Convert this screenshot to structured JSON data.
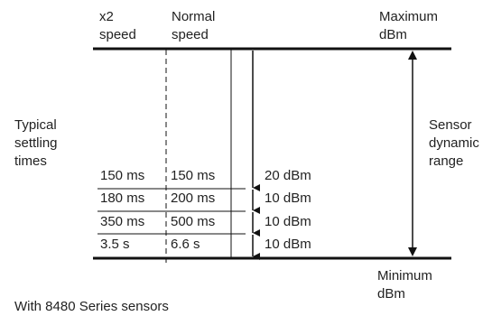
{
  "headers": {
    "x2": "x2\nspeed",
    "normal": "Normal\nspeed",
    "max": "Maximum\ndBm",
    "min": "Minimum\ndBm"
  },
  "side_labels": {
    "settling": "Typical\nsettling\ntimes",
    "range": "Sensor\ndynamic\nrange"
  },
  "rows": [
    {
      "x2": "150 ms",
      "normal": "150 ms",
      "dbm": "20 dBm"
    },
    {
      "x2": "180 ms",
      "normal": "200 ms",
      "dbm": "10 dBm"
    },
    {
      "x2": "350 ms",
      "normal": "500 ms",
      "dbm": "10 dBm"
    },
    {
      "x2": "3.5 s",
      "normal": "6.6 s",
      "dbm": "10 dBm"
    }
  ],
  "footer": "With 8480 Series sensors"
}
